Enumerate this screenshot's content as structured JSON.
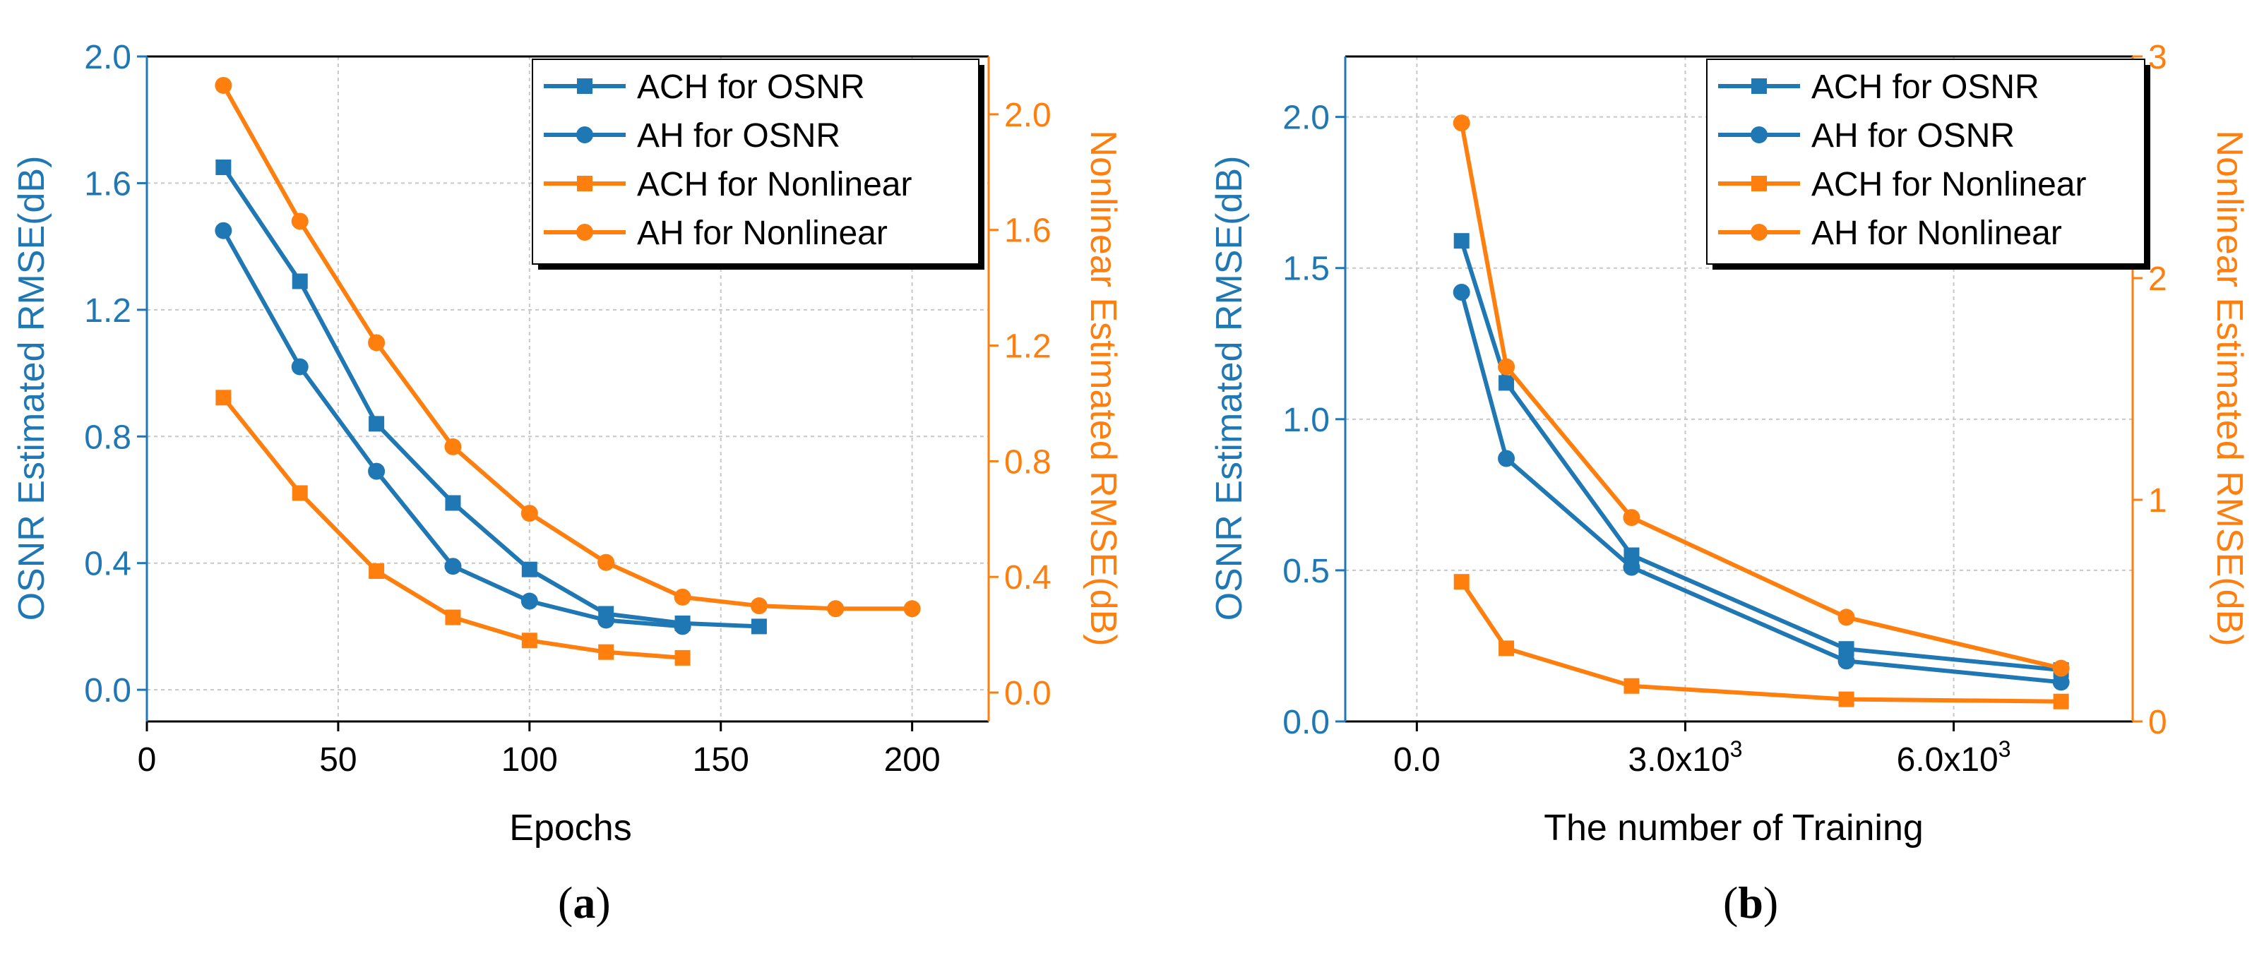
{
  "colors": {
    "blue": "#1f77b4",
    "orange": "#ff7f0e",
    "grid": "#c8c8c8",
    "frame": "#000000"
  },
  "chart_data": [
    {
      "id": "a",
      "type": "line",
      "subplot_label": "a",
      "xlabel": "Epochs",
      "ylabel_left": "OSNR Estimated RMSE(dB)",
      "ylabel_right": "Nonlinear Estimated RMSE(dB)",
      "xlim": [
        0,
        220
      ],
      "ylim_left": [
        -0.1,
        2.0
      ],
      "ylim_right": [
        -0.1,
        2.2
      ],
      "xticks": [
        0,
        50,
        100,
        150,
        200
      ],
      "xtick_labels": [
        "0",
        "50",
        "100",
        "150",
        "200"
      ],
      "yticks_left": [
        0.0,
        0.4,
        0.8,
        1.2,
        1.6,
        2.0
      ],
      "ytick_labels_left": [
        "0.0",
        "0.4",
        "0.8",
        "1.2",
        "1.6",
        "2.0"
      ],
      "yticks_right": [
        0.0,
        0.4,
        0.8,
        1.2,
        1.6,
        2.0
      ],
      "ytick_labels_right": [
        "0.0",
        "0.4",
        "0.8",
        "1.2",
        "1.6",
        "2.0"
      ],
      "grid": true,
      "legend_position": "top-right",
      "series": [
        {
          "name": "ACH for OSNR",
          "axis": "left",
          "color": "blue",
          "marker": "square",
          "x": [
            20,
            40,
            60,
            80,
            100,
            120,
            140,
            160
          ],
          "y": [
            1.65,
            1.29,
            0.84,
            0.59,
            0.38,
            0.24,
            0.21,
            0.2
          ]
        },
        {
          "name": "AH for OSNR",
          "axis": "left",
          "color": "blue",
          "marker": "circle",
          "x": [
            20,
            40,
            60,
            80,
            100,
            120,
            140
          ],
          "y": [
            1.45,
            1.02,
            0.69,
            0.39,
            0.28,
            0.22,
            0.2
          ]
        },
        {
          "name": "ACH for Nonlinear",
          "axis": "right",
          "color": "orange",
          "marker": "square",
          "x": [
            20,
            40,
            60,
            80,
            100,
            120,
            140
          ],
          "y": [
            1.02,
            0.69,
            0.42,
            0.26,
            0.18,
            0.14,
            0.12
          ]
        },
        {
          "name": "AH for Nonlinear",
          "axis": "right",
          "color": "orange",
          "marker": "circle",
          "x": [
            20,
            40,
            60,
            80,
            100,
            120,
            140,
            160,
            180,
            200
          ],
          "y": [
            2.1,
            1.63,
            1.21,
            0.85,
            0.62,
            0.45,
            0.33,
            0.3,
            0.29,
            0.29
          ]
        }
      ]
    },
    {
      "id": "b",
      "type": "line",
      "subplot_label": "b",
      "xlabel": "The number of Training",
      "ylabel_left": "OSNR Estimated RMSE(dB)",
      "ylabel_right": "Nonlinear Estimated RMSE(dB)",
      "xlim": [
        -800,
        8000
      ],
      "ylim_left": [
        0.0,
        2.2
      ],
      "ylim_right": [
        0.0,
        3.0
      ],
      "xticks": [
        0,
        3000,
        6000
      ],
      "xtick_labels": [
        "0.0",
        "3.0x10",
        "6.0x10"
      ],
      "xtick_exponents": [
        "",
        "3",
        "3"
      ],
      "yticks_left": [
        0.0,
        0.5,
        1.0,
        1.5,
        2.0
      ],
      "ytick_labels_left": [
        "0.0",
        "0.5",
        "1.0",
        "1.5",
        "2.0"
      ],
      "yticks_right": [
        0,
        1,
        2,
        3
      ],
      "ytick_labels_right": [
        "0",
        "1",
        "2",
        "3"
      ],
      "grid": true,
      "legend_position": "top-right",
      "series": [
        {
          "name": "ACH for OSNR",
          "axis": "left",
          "color": "blue",
          "marker": "square",
          "x": [
            500,
            1000,
            2400,
            4800,
            7200
          ],
          "y": [
            1.59,
            1.12,
            0.55,
            0.24,
            0.17
          ]
        },
        {
          "name": "AH for OSNR",
          "axis": "left",
          "color": "blue",
          "marker": "circle",
          "x": [
            500,
            1000,
            2400,
            4800,
            7200
          ],
          "y": [
            1.42,
            0.87,
            0.51,
            0.2,
            0.13
          ]
        },
        {
          "name": "ACH for Nonlinear",
          "axis": "right",
          "color": "orange",
          "marker": "square",
          "x": [
            500,
            1000,
            2400,
            4800,
            7200
          ],
          "y": [
            0.63,
            0.33,
            0.16,
            0.1,
            0.09
          ]
        },
        {
          "name": "AH for Nonlinear",
          "axis": "right",
          "color": "orange",
          "marker": "circle",
          "x": [
            500,
            1000,
            2400,
            4800,
            7200
          ],
          "y": [
            2.7,
            1.6,
            0.92,
            0.47,
            0.24
          ]
        }
      ]
    }
  ]
}
